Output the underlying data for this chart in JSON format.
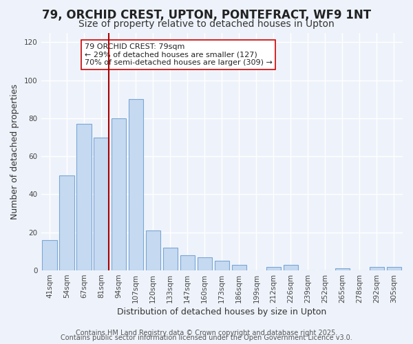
{
  "title": "79, ORCHID CREST, UPTON, PONTEFRACT, WF9 1NT",
  "subtitle": "Size of property relative to detached houses in Upton",
  "xlabel": "Distribution of detached houses by size in Upton",
  "ylabel": "Number of detached properties",
  "categories": [
    "41sqm",
    "54sqm",
    "67sqm",
    "81sqm",
    "94sqm",
    "107sqm",
    "120sqm",
    "133sqm",
    "147sqm",
    "160sqm",
    "173sqm",
    "186sqm",
    "199sqm",
    "212sqm",
    "226sqm",
    "239sqm",
    "252sqm",
    "265sqm",
    "278sqm",
    "292sqm",
    "305sqm"
  ],
  "values": [
    16,
    50,
    77,
    70,
    80,
    90,
    21,
    12,
    8,
    7,
    5,
    3,
    0,
    2,
    3,
    0,
    0,
    1,
    0,
    2,
    2
  ],
  "bar_color": "#c5d9f1",
  "bar_edge_color": "#7aa6d4",
  "vline_x_index": 3,
  "vline_color": "#aa0000",
  "annotation_box_text": "79 ORCHID CREST: 79sqm\n← 29% of detached houses are smaller (127)\n70% of semi-detached houses are larger (309) →",
  "ylim": [
    0,
    125
  ],
  "yticks": [
    0,
    20,
    40,
    60,
    80,
    100,
    120
  ],
  "bg_color": "#eef3fb",
  "grid_color": "#ffffff",
  "footer_line1": "Contains HM Land Registry data © Crown copyright and database right 2025.",
  "footer_line2": "Contains public sector information licensed under the Open Government Licence v3.0.",
  "title_fontsize": 12,
  "subtitle_fontsize": 10,
  "xlabel_fontsize": 9,
  "ylabel_fontsize": 9,
  "tick_fontsize": 7.5,
  "footer_fontsize": 7
}
